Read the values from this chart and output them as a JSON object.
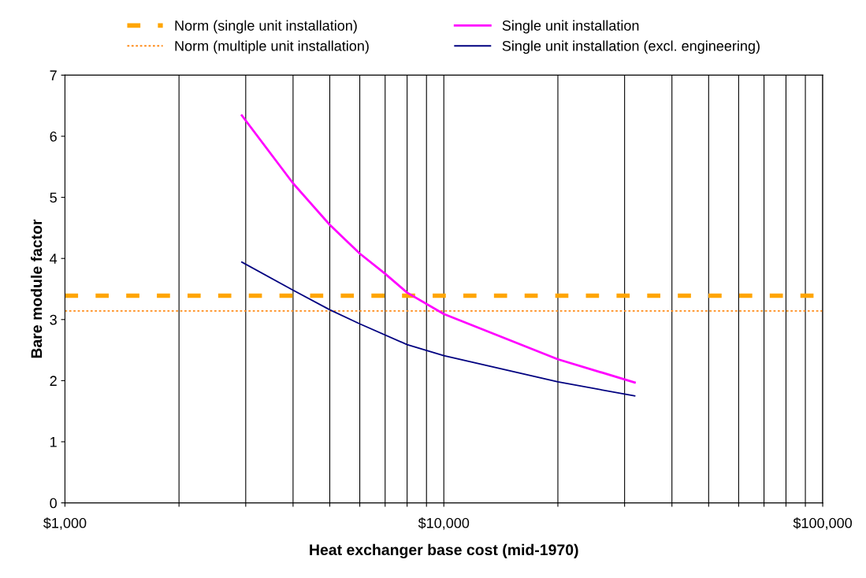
{
  "chart_data": {
    "type": "line",
    "xlabel": "Heat exchanger base cost (mid-1970)",
    "ylabel": "Bare module factor",
    "log": "x",
    "xlim": [
      1000,
      100000
    ],
    "ylim": [
      0,
      7
    ],
    "xticks": [
      {
        "value": 1000,
        "label": "$1,000"
      },
      {
        "value": 2000,
        "label": null
      },
      {
        "value": 3000,
        "label": null
      },
      {
        "value": 4000,
        "label": null
      },
      {
        "value": 5000,
        "label": null
      },
      {
        "value": 6000,
        "label": null
      },
      {
        "value": 7000,
        "label": null
      },
      {
        "value": 8000,
        "label": null
      },
      {
        "value": 9000,
        "label": null
      },
      {
        "value": 10000,
        "label": "$10,000"
      },
      {
        "value": 20000,
        "label": null
      },
      {
        "value": 30000,
        "label": null
      },
      {
        "value": 40000,
        "label": null
      },
      {
        "value": 50000,
        "label": null
      },
      {
        "value": 60000,
        "label": null
      },
      {
        "value": 70000,
        "label": null
      },
      {
        "value": 80000,
        "label": null
      },
      {
        "value": 90000,
        "label": null
      },
      {
        "value": 100000,
        "label": "$100,000"
      }
    ],
    "yticks": [
      0,
      1,
      2,
      3,
      4,
      5,
      6,
      7
    ],
    "grid": "x",
    "legend": "top",
    "marker": "none",
    "ref_lines": [
      {
        "axis": "y",
        "value": 3.39,
        "label": "Norm (single unit installation)",
        "color": "#ffa500",
        "line_style": "dashed"
      },
      {
        "axis": "y",
        "value": 3.14,
        "label": "Norm (multiple unit installation)",
        "color": "#ff8c1a",
        "line_style": "dotted"
      }
    ],
    "series": [
      {
        "name": "Single unit installation",
        "color": "#ff00ff",
        "x": [
          2930,
          4000,
          5000,
          6000,
          7000,
          8000,
          10000,
          20000,
          31900
        ],
        "values": [
          6.34,
          5.23,
          4.55,
          4.08,
          3.75,
          3.44,
          3.09,
          2.35,
          1.97
        ]
      },
      {
        "name": "Single unit installation (excl. engineering)",
        "color": "#000080",
        "x": [
          2930,
          4000,
          5000,
          6000,
          8000,
          10000,
          20000,
          31900
        ],
        "values": [
          3.94,
          3.48,
          3.16,
          2.93,
          2.59,
          2.41,
          1.98,
          1.75
        ]
      }
    ]
  }
}
